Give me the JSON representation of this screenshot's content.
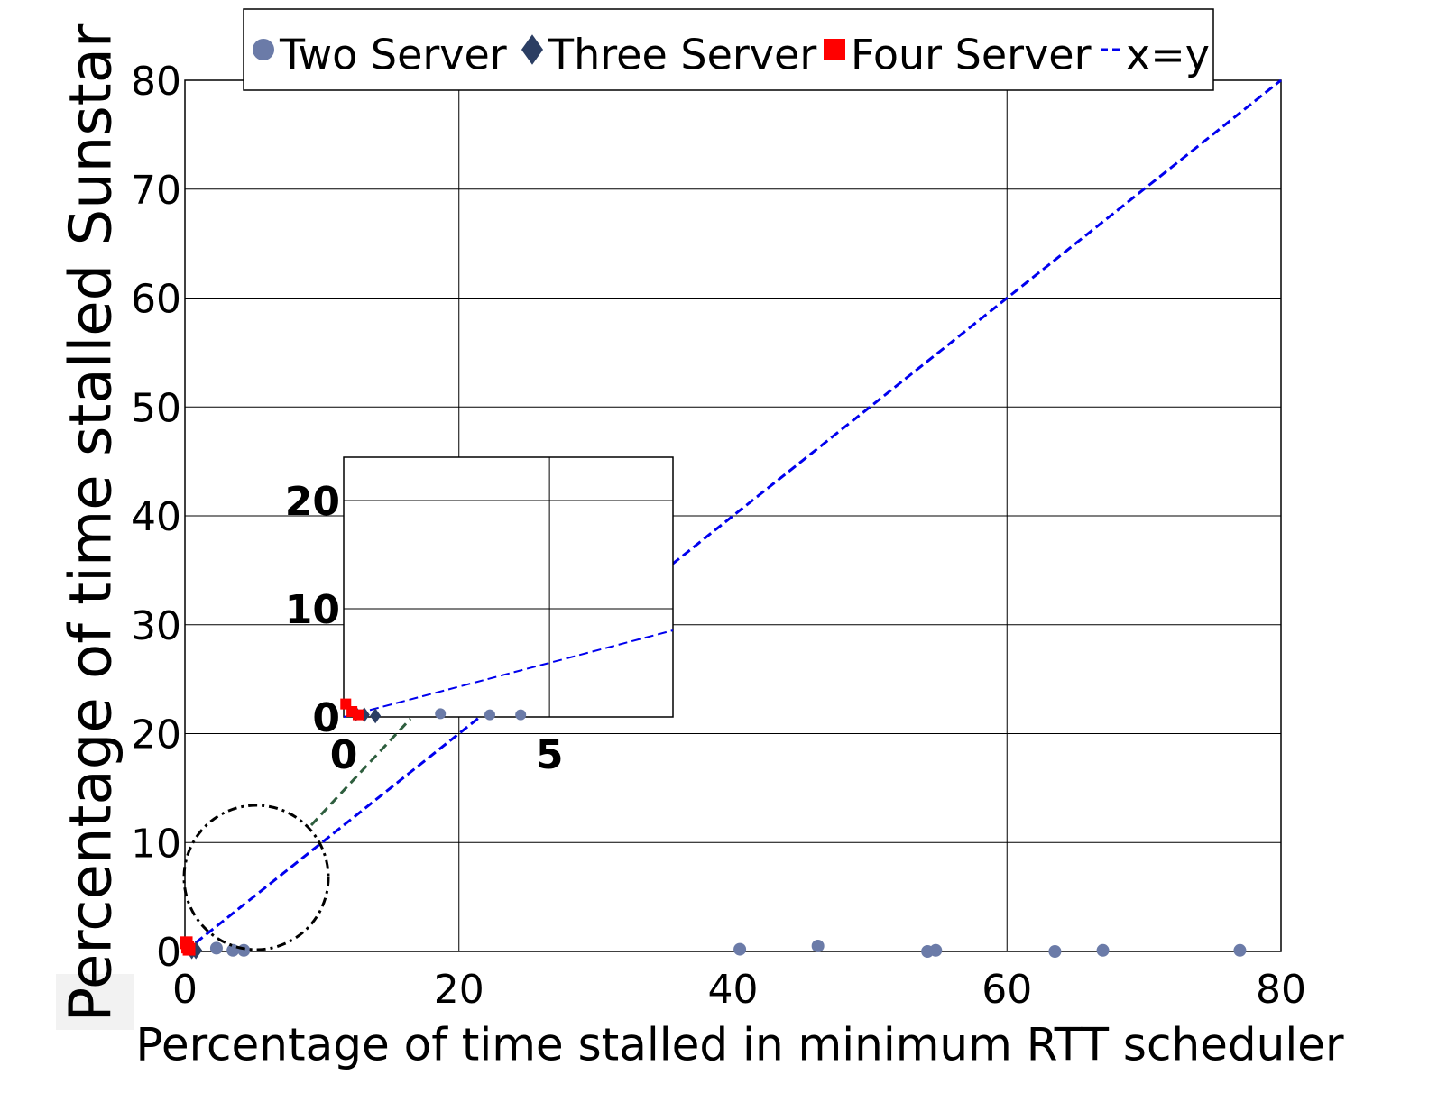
{
  "chart_data": [
    {
      "type": "scatter",
      "x_label": "Percentage of time stalled in minimum RTT scheduler",
      "y_label": "Percentage of time stalled Sunstar",
      "xlim": [
        0,
        80
      ],
      "ylim": [
        0,
        80
      ],
      "xticks": [
        0,
        20,
        40,
        60,
        80
      ],
      "yticks": [
        0,
        10,
        20,
        30,
        40,
        50,
        60,
        70,
        80
      ],
      "grid": true,
      "series": [
        {
          "name": "Two Server",
          "color": "#6b7ba8",
          "marker": "circle",
          "x": [
            0.3,
            2.3,
            3.5,
            4.3,
            40.5,
            46.2,
            54.2,
            54.8,
            63.5,
            67,
            77
          ],
          "values": [
            0.2,
            0.3,
            0.1,
            0.1,
            0.2,
            0.5,
            0,
            0.1,
            0,
            0.1,
            0.1
          ]
        },
        {
          "name": "Three Server",
          "color": "#2b3e63",
          "marker": "diamond",
          "x": [
            0.5,
            0.8
          ],
          "values": [
            0.1,
            0.1
          ]
        },
        {
          "name": "Four Server",
          "color": "#ff0000",
          "marker": "square",
          "x": [
            0.1,
            0.2,
            0.3
          ],
          "values": [
            0.8,
            0.4,
            0.2
          ]
        },
        {
          "name": "x=y",
          "color": "#0000ee",
          "marker": "dashed-line",
          "x": [
            0,
            80
          ],
          "values": [
            0,
            80
          ]
        }
      ]
    },
    {
      "type": "scatter",
      "xlim": [
        0,
        8
      ],
      "ylim": [
        0,
        24
      ],
      "xticks": [
        0,
        5
      ],
      "yticks": [
        0,
        10,
        20
      ],
      "grid": true,
      "series": [
        {
          "color": "#6b7ba8",
          "marker": "circle",
          "x": [
            2.35,
            3.55,
            4.3
          ],
          "values": [
            0.3,
            0.2,
            0.2
          ]
        },
        {
          "color": "#2b3e63",
          "marker": "diamond",
          "x": [
            0.3,
            0.5,
            0.77
          ],
          "values": [
            0.3,
            0.2,
            0.1
          ]
        },
        {
          "color": "#ff0000",
          "marker": "square",
          "x": [
            0.05,
            0.2,
            0.35
          ],
          "values": [
            1.2,
            0.5,
            0.2
          ]
        },
        {
          "color": "#0000ee",
          "marker": "dashed-line",
          "x": [
            0,
            8
          ],
          "values": [
            0,
            8
          ]
        }
      ]
    }
  ]
}
